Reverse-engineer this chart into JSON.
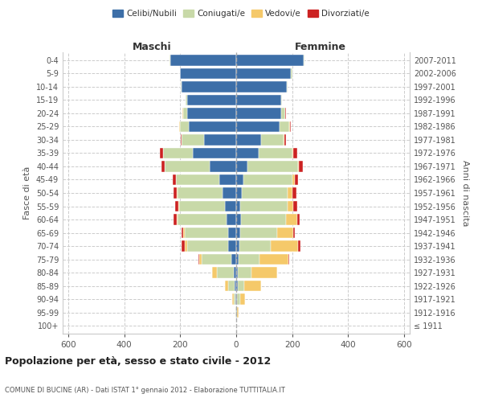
{
  "age_groups": [
    "100+",
    "95-99",
    "90-94",
    "85-89",
    "80-84",
    "75-79",
    "70-74",
    "65-69",
    "60-64",
    "55-59",
    "50-54",
    "45-49",
    "40-44",
    "35-39",
    "30-34",
    "25-29",
    "20-24",
    "15-19",
    "10-14",
    "5-9",
    "0-4"
  ],
  "birth_years": [
    "≤ 1911",
    "1912-1916",
    "1917-1921",
    "1922-1926",
    "1927-1931",
    "1932-1936",
    "1937-1941",
    "1942-1946",
    "1947-1951",
    "1952-1956",
    "1957-1961",
    "1962-1966",
    "1967-1971",
    "1972-1976",
    "1977-1981",
    "1982-1986",
    "1987-1991",
    "1992-1996",
    "1997-2001",
    "2002-2006",
    "2007-2011"
  ],
  "males": {
    "celibi": [
      1,
      1,
      2,
      5,
      10,
      18,
      30,
      30,
      35,
      40,
      50,
      60,
      95,
      155,
      115,
      170,
      175,
      175,
      195,
      200,
      235
    ],
    "coniugati": [
      0,
      2,
      8,
      25,
      60,
      105,
      145,
      155,
      175,
      165,
      160,
      155,
      160,
      105,
      80,
      30,
      15,
      5,
      2,
      2,
      2
    ],
    "vedovi": [
      0,
      1,
      3,
      10,
      15,
      8,
      10,
      5,
      3,
      2,
      2,
      1,
      1,
      0,
      0,
      5,
      2,
      0,
      0,
      0,
      2
    ],
    "divorziati": [
      0,
      0,
      0,
      0,
      0,
      5,
      10,
      5,
      10,
      10,
      12,
      12,
      10,
      12,
      2,
      0,
      0,
      0,
      0,
      0,
      0
    ]
  },
  "females": {
    "nubili": [
      1,
      2,
      3,
      5,
      5,
      8,
      12,
      15,
      18,
      15,
      20,
      25,
      40,
      80,
      90,
      155,
      160,
      160,
      180,
      195,
      240
    ],
    "coniugate": [
      0,
      2,
      10,
      25,
      50,
      75,
      110,
      130,
      160,
      170,
      165,
      175,
      180,
      120,
      80,
      35,
      15,
      5,
      5,
      5,
      3
    ],
    "vedove": [
      0,
      5,
      20,
      60,
      90,
      105,
      100,
      60,
      40,
      20,
      15,
      10,
      5,
      5,
      2,
      2,
      0,
      0,
      0,
      0,
      0
    ],
    "divorziate": [
      0,
      0,
      0,
      0,
      2,
      2,
      8,
      5,
      10,
      12,
      15,
      12,
      12,
      12,
      5,
      2,
      2,
      0,
      0,
      0,
      0
    ]
  },
  "color_celibi": "#3d6fa8",
  "color_coniugati": "#c8d9a8",
  "color_vedovi": "#f5c96a",
  "color_divorziati": "#cc2222",
  "xlim": 620,
  "title": "Popolazione per età, sesso e stato civile - 2012",
  "subtitle": "COMUNE DI BUCINE (AR) - Dati ISTAT 1° gennaio 2012 - Elaborazione TUTTITALIA.IT",
  "ylabel": "Fasce di età",
  "ylabel_right": "Anni di nascita",
  "label_maschi": "Maschi",
  "label_femmine": "Femmine",
  "legend_celibi": "Celibi/Nubili",
  "legend_coniugati": "Coniugati/e",
  "legend_vedovi": "Vedovi/e",
  "legend_divorziati": "Divorziati/e"
}
